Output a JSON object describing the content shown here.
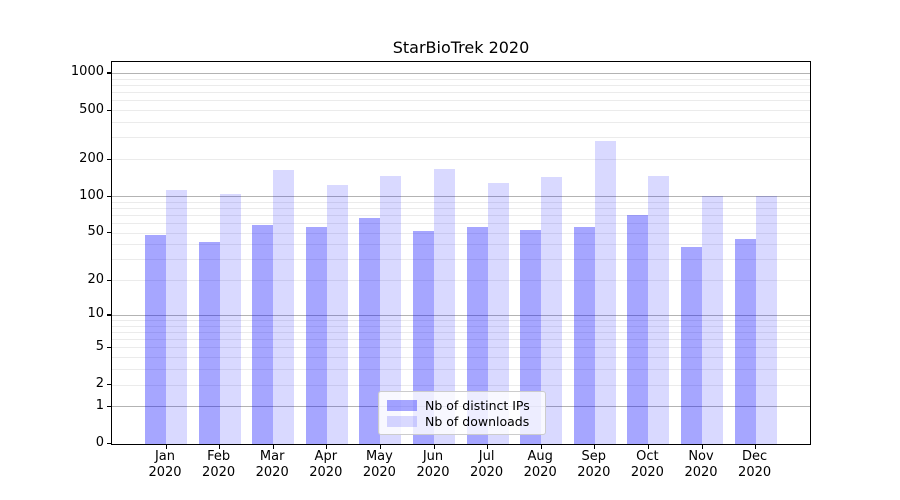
{
  "chart_data": {
    "type": "bar",
    "title": "StarBioTrek 2020",
    "scale": "log1p",
    "categories": [
      "Jan",
      "Feb",
      "Mar",
      "Apr",
      "May",
      "Jun",
      "Jul",
      "Aug",
      "Sep",
      "Oct",
      "Nov",
      "Dec"
    ],
    "x_tick_year": "2020",
    "series": [
      {
        "name": "Nb of distinct IPs",
        "color": "rgba(0,0,255,0.35)",
        "values": [
          48,
          42,
          58,
          56,
          66,
          52,
          56,
          53,
          56,
          70,
          38,
          44
        ]
      },
      {
        "name": "Nb of downloads",
        "color": "rgba(0,0,255,0.15)",
        "values": [
          112,
          103,
          162,
          124,
          145,
          165,
          127,
          144,
          280,
          146,
          100,
          100
        ]
      }
    ],
    "y_ticks": [
      0,
      1,
      2,
      5,
      10,
      20,
      50,
      100,
      200,
      500,
      1000
    ],
    "y_major_gridlines": [
      1,
      10,
      100,
      1000
    ],
    "ylim": [
      0,
      1400
    ],
    "grid": true,
    "legend_position": "bottom-center-inside",
    "colors": {
      "grid_major": "#b3b3b3",
      "grid_minor": "#ebebeb",
      "axis": "#000000"
    }
  }
}
